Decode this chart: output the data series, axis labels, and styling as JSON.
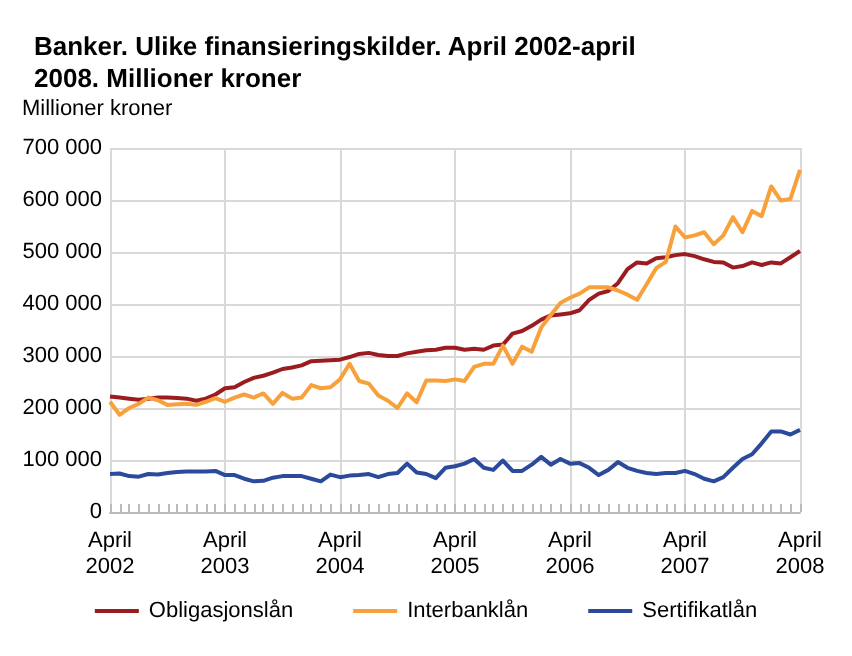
{
  "chart_data": {
    "type": "line",
    "title": "Banker. Ulike finansieringskilder. April 2002-april 2008. Millioner kroner",
    "ylabel": "Millioner kroner",
    "categories": [
      "April 2002",
      null,
      null,
      null,
      null,
      null,
      null,
      null,
      null,
      null,
      null,
      null,
      "April 2003",
      null,
      null,
      null,
      null,
      null,
      null,
      null,
      null,
      null,
      null,
      null,
      "April 2004",
      null,
      null,
      null,
      null,
      null,
      null,
      null,
      null,
      null,
      null,
      null,
      "April 2005",
      null,
      null,
      null,
      null,
      null,
      null,
      null,
      null,
      null,
      null,
      null,
      "April 2006",
      null,
      null,
      null,
      null,
      null,
      null,
      null,
      null,
      null,
      null,
      null,
      "April 2007",
      null,
      null,
      null,
      null,
      null,
      null,
      null,
      null,
      null,
      null,
      null,
      "April 2008"
    ],
    "series": [
      {
        "name": "Obligasjonslån",
        "color": "#9b1c20",
        "values": [
          222000,
          220000,
          218000,
          216000,
          218000,
          220000,
          220000,
          219000,
          218000,
          214000,
          218000,
          226000,
          238000,
          240000,
          250000,
          258000,
          262000,
          268000,
          275000,
          278000,
          282000,
          290000,
          291000,
          292000,
          293000,
          298000,
          304000,
          306000,
          302000,
          300000,
          300000,
          305000,
          308000,
          311000,
          312000,
          316000,
          316000,
          312000,
          314000,
          312000,
          320000,
          322000,
          343000,
          348000,
          358000,
          370000,
          378000,
          380000,
          382000,
          388000,
          408000,
          420000,
          425000,
          440000,
          467000,
          480000,
          478000,
          488000,
          490000,
          494000,
          496000,
          492000,
          486000,
          481000,
          480000,
          470000,
          473000,
          480000,
          475000,
          480000,
          478000,
          490000,
          502000
        ]
      },
      {
        "name": "Interbanklån",
        "color": "#f8a13c",
        "values": [
          212000,
          187000,
          200000,
          208000,
          220000,
          215000,
          206000,
          207000,
          208000,
          206000,
          212000,
          219000,
          212000,
          220000,
          226000,
          220000,
          228000,
          208000,
          229000,
          218000,
          220000,
          244000,
          238000,
          240000,
          255000,
          285000,
          252000,
          247000,
          224000,
          214000,
          200000,
          228000,
          211000,
          253000,
          253000,
          252000,
          255000,
          252000,
          279000,
          285000,
          285000,
          320000,
          285000,
          318000,
          308000,
          355000,
          379000,
          402000,
          412000,
          420000,
          432000,
          432000,
          432000,
          426000,
          418000,
          408000,
          438000,
          469000,
          481000,
          549000,
          528000,
          532000,
          538000,
          515000,
          532000,
          567000,
          538000,
          579000,
          569000,
          626000,
          599000,
          602000,
          658000
        ]
      },
      {
        "name": "Sertifikatlån",
        "color": "#2b4a9b",
        "values": [
          73000,
          74000,
          69000,
          68000,
          73000,
          72000,
          75000,
          77000,
          78000,
          78000,
          78000,
          79000,
          71000,
          71000,
          64000,
          59000,
          60000,
          66000,
          69000,
          69000,
          69000,
          64000,
          59000,
          72000,
          67000,
          70000,
          71000,
          73000,
          67000,
          73000,
          75000,
          93000,
          76000,
          73000,
          65000,
          85000,
          88000,
          93000,
          102000,
          85000,
          81000,
          99000,
          79000,
          79000,
          91000,
          106000,
          91000,
          102000,
          93000,
          94000,
          85000,
          71000,
          81000,
          96000,
          85000,
          79000,
          75000,
          73000,
          75000,
          75000,
          79000,
          73000,
          64000,
          59000,
          67000,
          85000,
          102000,
          111000,
          132000,
          155000,
          155000,
          149000,
          158000
        ]
      }
    ],
    "ylim": [
      0,
      700000
    ],
    "yticks": [
      0,
      {
        "value": 100000,
        "label": "100 000"
      },
      {
        "value": 200000,
        "label": "200 000"
      },
      {
        "value": 300000,
        "label": "300 000"
      },
      {
        "value": 400000,
        "label": "400 000"
      },
      {
        "value": 500000,
        "label": "500 000"
      },
      {
        "value": 600000,
        "label": "600 000"
      },
      {
        "value": 700000,
        "label": "700 000"
      }
    ],
    "grid": true,
    "legend": "bottom",
    "marker": "none",
    "line_style": "solid"
  }
}
